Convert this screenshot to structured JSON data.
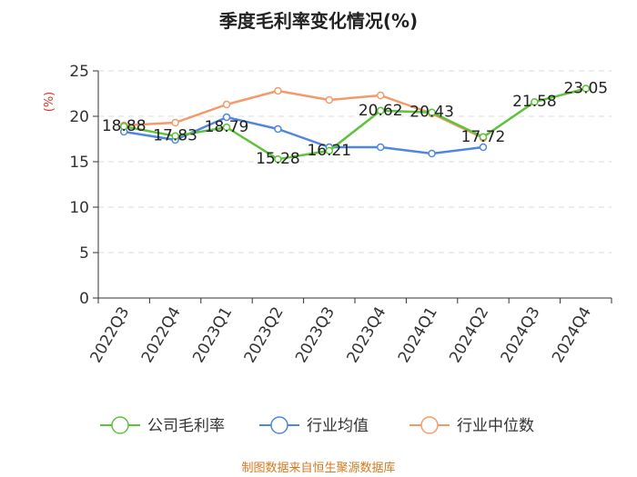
{
  "chart_data": {
    "type": "line",
    "title": "季度毛利率变化情况(%)",
    "ylabel": "(%)",
    "xlabel": "",
    "categories": [
      "2022Q3",
      "2022Q4",
      "2023Q1",
      "2023Q2",
      "2023Q3",
      "2023Q4",
      "2024Q1",
      "2024Q2",
      "2024Q3",
      "2024Q4"
    ],
    "ylim": [
      0,
      25
    ],
    "yticks": [
      0,
      5,
      10,
      15,
      20,
      25
    ],
    "grid": "horizontal dashed",
    "legend_position": "bottom",
    "series": [
      {
        "name": "公司毛利率",
        "color": "#5ec23a",
        "values": [
          18.88,
          17.83,
          18.79,
          15.28,
          16.21,
          20.62,
          20.43,
          17.72,
          21.58,
          23.05
        ],
        "labels": [
          "18.88",
          "17.83",
          "18.79",
          "15.28",
          "16.21",
          "20.62",
          "20.43",
          "17.72",
          "21.58",
          "23.05"
        ]
      },
      {
        "name": "行业均值",
        "color": "#4e86e0",
        "values": [
          18.3,
          17.4,
          19.9,
          18.6,
          16.6,
          16.6,
          15.9,
          16.6,
          null,
          null
        ]
      },
      {
        "name": "行业中位数",
        "color": "#f39a6b",
        "values": [
          19.0,
          19.3,
          21.3,
          22.8,
          21.8,
          22.3,
          20.3,
          17.6,
          null,
          null
        ]
      }
    ],
    "source": "制图数据来自恒生聚源数据库"
  }
}
